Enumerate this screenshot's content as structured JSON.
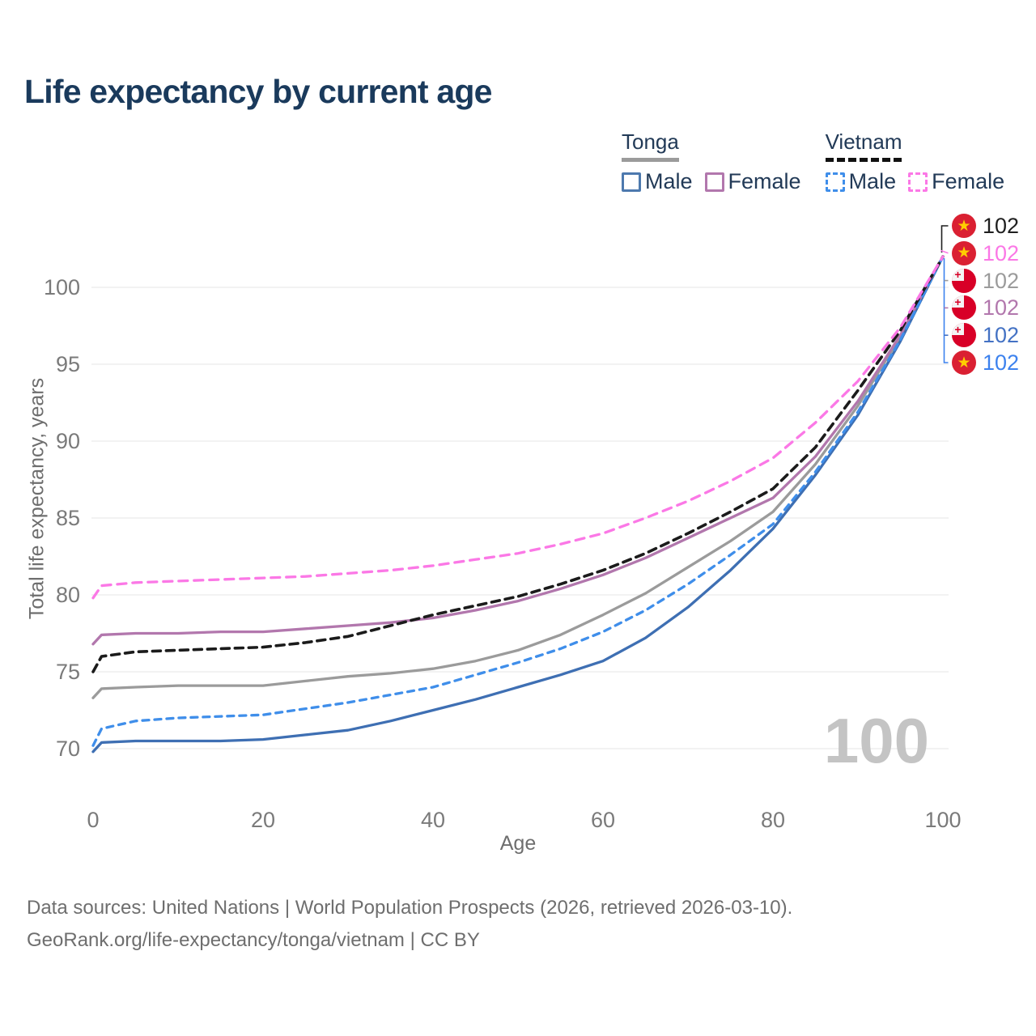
{
  "title": "Life expectancy by current age",
  "watermark": "100",
  "legend": {
    "groups": [
      {
        "id": "tonga",
        "title": "Tonga",
        "line_style": "solid",
        "line_color": "#9b9b9b",
        "items": [
          {
            "id": "tonga-male",
            "label": "Male",
            "color": "#4d79ae",
            "style": "solid"
          },
          {
            "id": "tonga-female",
            "label": "Female",
            "color": "#b277ad",
            "style": "solid"
          }
        ]
      },
      {
        "id": "vietnam",
        "title": "Vietnam",
        "line_style": "dashed",
        "line_color": "#111111",
        "items": [
          {
            "id": "vietnam-male",
            "label": "Male",
            "color": "#3f8eea",
            "style": "dashed"
          },
          {
            "id": "vietnam-female",
            "label": "Female",
            "color": "#fb78e6",
            "style": "dashed"
          }
        ]
      }
    ]
  },
  "chart_data": {
    "type": "line",
    "title": "Life expectancy by current age",
    "xlabel": "Age",
    "ylabel": "Total life expectancy, years",
    "xlim": [
      0,
      100
    ],
    "ylim": [
      68,
      103
    ],
    "xticks": [
      0,
      20,
      40,
      60,
      80,
      100
    ],
    "yticks": [
      70,
      75,
      80,
      85,
      90,
      95,
      100
    ],
    "grid": "horizontal",
    "legend_position": "top-right",
    "x": [
      0,
      1,
      5,
      10,
      15,
      20,
      25,
      30,
      35,
      40,
      45,
      50,
      55,
      60,
      65,
      70,
      75,
      80,
      85,
      90,
      95,
      100
    ],
    "series": [
      {
        "id": "tonga-all",
        "name": "Tonga",
        "country": "Tonga",
        "sex": "All",
        "color": "#9b9b9b",
        "dash": "",
        "width": 3.3,
        "values": [
          73.3,
          73.9,
          74.0,
          74.1,
          74.1,
          74.1,
          74.4,
          74.7,
          74.9,
          75.2,
          75.7,
          76.4,
          77.4,
          78.7,
          80.1,
          81.8,
          83.5,
          85.4,
          88.5,
          92.3,
          96.8,
          102
        ]
      },
      {
        "id": "tonga-male",
        "name": "Tonga Male",
        "country": "Tonga",
        "sex": "Male",
        "color": "#3e6fb3",
        "dash": "",
        "width": 3.3,
        "values": [
          69.8,
          70.4,
          70.5,
          70.5,
          70.5,
          70.6,
          70.9,
          71.2,
          71.8,
          72.5,
          73.2,
          74.0,
          74.8,
          75.7,
          77.2,
          79.2,
          81.6,
          84.3,
          87.8,
          91.7,
          96.5,
          102
        ]
      },
      {
        "id": "tonga-female",
        "name": "Tonga Female",
        "country": "Tonga",
        "sex": "Female",
        "color": "#b277ad",
        "dash": "",
        "width": 3.3,
        "values": [
          76.8,
          77.4,
          77.5,
          77.5,
          77.6,
          77.6,
          77.8,
          78.0,
          78.2,
          78.5,
          79.0,
          79.6,
          80.4,
          81.3,
          82.4,
          83.7,
          85.0,
          86.3,
          89.0,
          92.6,
          96.9,
          102
        ]
      },
      {
        "id": "vietnam-male",
        "name": "Vietnam Male",
        "country": "Vietnam",
        "sex": "Male",
        "color": "#3f8eea",
        "dash": "8 7",
        "width": 3.3,
        "values": [
          70.2,
          71.3,
          71.8,
          72.0,
          72.1,
          72.2,
          72.6,
          73.0,
          73.5,
          74.0,
          74.8,
          75.6,
          76.5,
          77.6,
          79.0,
          80.7,
          82.6,
          84.6,
          88.0,
          91.9,
          96.6,
          102
        ]
      },
      {
        "id": "vietnam-all",
        "name": "Vietnam",
        "country": "Vietnam",
        "sex": "All",
        "color": "#1b1b1b",
        "dash": "10 7",
        "width": 3.6,
        "values": [
          75.0,
          76.0,
          76.3,
          76.4,
          76.5,
          76.6,
          76.9,
          77.3,
          78.0,
          78.7,
          79.3,
          79.9,
          80.7,
          81.6,
          82.7,
          84.0,
          85.4,
          86.9,
          89.6,
          93.3,
          97.2,
          102
        ]
      },
      {
        "id": "vietnam-female",
        "name": "Vietnam Female",
        "country": "Vietnam",
        "sex": "Female",
        "color": "#fb78e6",
        "dash": "11 8",
        "width": 3.3,
        "values": [
          79.8,
          80.6,
          80.8,
          80.9,
          81.0,
          81.1,
          81.2,
          81.4,
          81.6,
          81.9,
          82.3,
          82.7,
          83.3,
          84.0,
          85.0,
          86.1,
          87.4,
          88.9,
          91.2,
          93.9,
          97.4,
          102
        ]
      }
    ]
  },
  "end_labels": [
    {
      "series": "vietnam-all",
      "flag": "vietnam",
      "value": "102",
      "color": "#1f1f1f"
    },
    {
      "series": "vietnam-female",
      "flag": "vietnam",
      "value": "102",
      "color": "#fb78e6"
    },
    {
      "series": "tonga-all",
      "flag": "tonga",
      "value": "102",
      "color": "#9b9b9b"
    },
    {
      "series": "tonga-female",
      "flag": "tonga",
      "value": "102",
      "color": "#b277ad"
    },
    {
      "series": "tonga-male",
      "flag": "tonga",
      "value": "102",
      "color": "#4472c4"
    },
    {
      "series": "vietnam-male",
      "flag": "vietnam",
      "value": "102",
      "color": "#3d82ee"
    }
  ],
  "footer": {
    "line1": "Data sources: United Nations | World Population Prospects (2026, retrieved 2026-03-10).",
    "line2": "GeoRank.org/life-expectancy/tonga/vietnam | CC BY"
  }
}
